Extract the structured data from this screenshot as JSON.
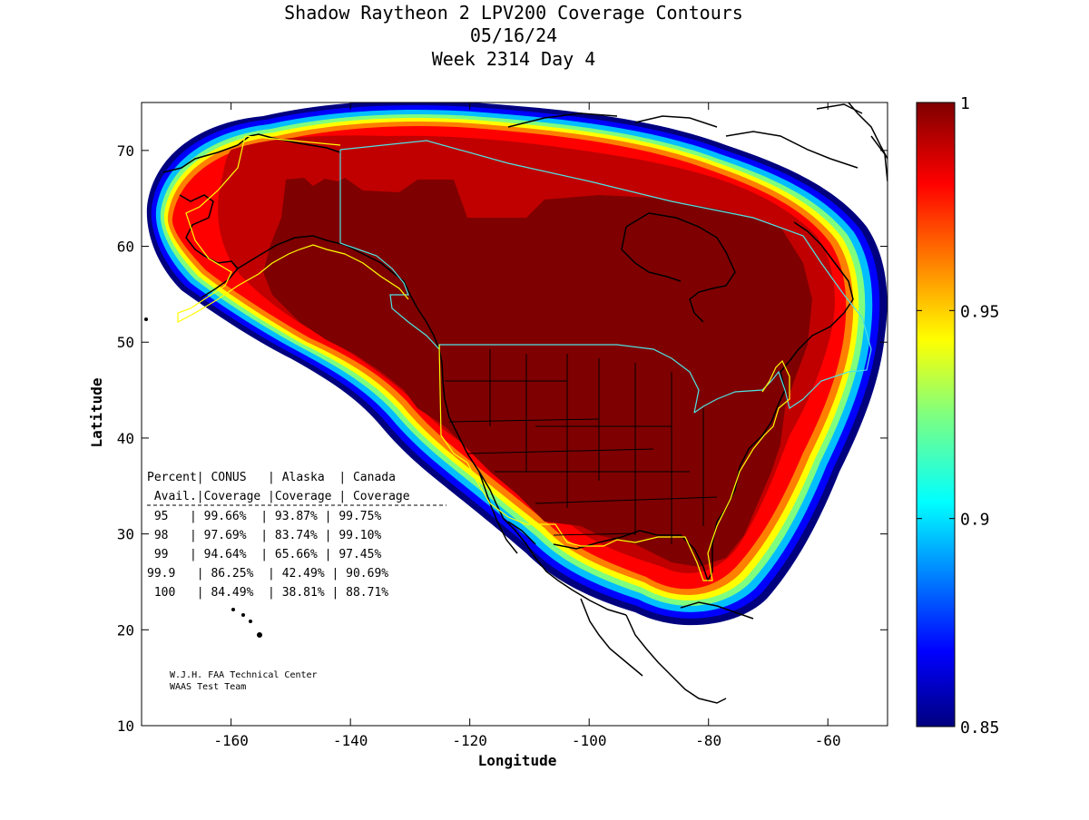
{
  "chart_data": {
    "type": "heatmap",
    "title": [
      "Shadow Raytheon 2 LPV200 Coverage Contours",
      "05/16/24",
      "Week 2314 Day 4"
    ],
    "xlabel": "Longitude",
    "ylabel": "Latitude",
    "xlim": [
      -175,
      -50
    ],
    "ylim": [
      10,
      75
    ],
    "x_ticks": [
      -160,
      -140,
      -120,
      -100,
      -80,
      -60
    ],
    "y_ticks": [
      10,
      20,
      30,
      40,
      50,
      60,
      70
    ],
    "colorbar": {
      "range": [
        0.85,
        1
      ],
      "ticks": [
        0.85,
        0.9,
        0.95,
        1
      ],
      "tick_labels": [
        "0.85",
        "0.9",
        "0.95",
        "1"
      ],
      "colormap": "jet"
    },
    "coverage_table": {
      "header_row1": "Percent| CONUS   | Alaska  | Canada",
      "header_row2": " Avail.|Coverage |Coverage | Coverage",
      "rows": [
        " 95   | 99.66%  | 93.87% | 99.75%",
        " 98   | 97.69%  | 83.74% | 99.10%",
        " 99   | 94.64%  | 65.66% | 97.45%",
        "99.9   | 86.25%  | 42.49% | 90.69%",
        " 100   | 84.49%  | 38.81% | 88.71%"
      ]
    },
    "credit": [
      "W.J.H. FAA Technical Center",
      "WAAS Test Team"
    ]
  },
  "colors": {
    "background": "#ffffff",
    "coastline": "#000000",
    "conus_border": "#ffff00",
    "canada_border": "#4fe3e3",
    "core": "#7f0000"
  }
}
